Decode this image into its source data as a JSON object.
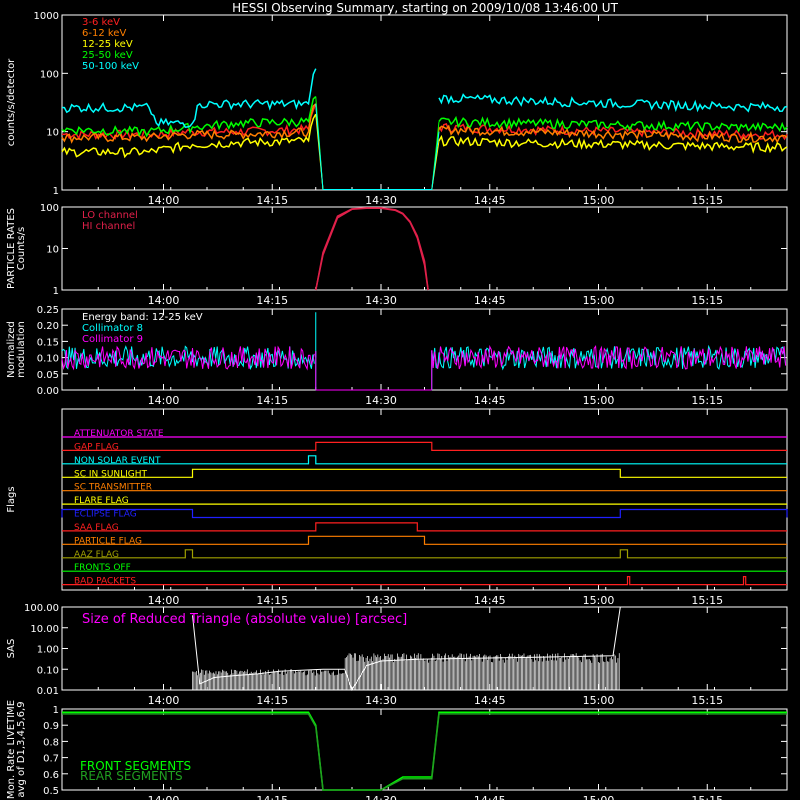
{
  "title": "HESSI Observing Summary, starting on 2009/10/08 13:46:00 UT",
  "time_ticks": [
    "14:00",
    "14:15",
    "14:30",
    "14:45",
    "15:00",
    "15:15"
  ],
  "colors": {
    "background": "#000000",
    "axis": "#ffffff",
    "red": "#ff2020",
    "orange": "#ff7f00",
    "yellow": "#ffff00",
    "green": "#00ff00",
    "cyan": "#00ffff",
    "magenta": "#ff00ff",
    "blue": "#2020ff",
    "crimson": "#e0204a",
    "olive": "#a0a000",
    "white": "#ffffff"
  },
  "chart_data": [
    {
      "id": "count-rates",
      "type": "line",
      "title": "HESSI Observing Summary, starting on 2009/10/08 13:46:00 UT",
      "ylabel": "counts/s/detector",
      "y_scale": "log",
      "ylim": [
        1,
        1000
      ],
      "y_ticks": [
        "1000",
        "100",
        "10",
        "1"
      ],
      "x_range": [
        "13:46",
        "15:26"
      ],
      "legend_position": "top-left",
      "series": [
        {
          "name": "3-6 keV",
          "color": "#ff2020",
          "x": [
            "13:46",
            "13:58",
            "14:04",
            "14:10",
            "14:20",
            "14:21",
            "14:22",
            "14:37",
            "14:38",
            "14:50",
            "15:05",
            "15:20",
            "15:26"
          ],
          "values": [
            9,
            9,
            10,
            10,
            11,
            30,
            null,
            null,
            12,
            11,
            10,
            9,
            9
          ]
        },
        {
          "name": "6-12 keV",
          "color": "#ff7f00",
          "x": [
            "13:46",
            "13:58",
            "14:04",
            "14:10",
            "14:20",
            "14:21",
            "14:22",
            "14:37",
            "14:38",
            "14:50",
            "15:05",
            "15:20",
            "15:26"
          ],
          "values": [
            8,
            8,
            9,
            9,
            10,
            30,
            null,
            null,
            11,
            10,
            9,
            8,
            8
          ]
        },
        {
          "name": "12-25 keV",
          "color": "#ffff00",
          "x": [
            "13:46",
            "13:58",
            "14:04",
            "14:10",
            "14:20",
            "14:21",
            "14:22",
            "14:37",
            "14:38",
            "14:50",
            "15:05",
            "15:20",
            "15:26"
          ],
          "values": [
            4.5,
            4.5,
            6,
            6.5,
            7,
            20,
            null,
            null,
            7,
            6.5,
            6,
            5.5,
            5.5
          ]
        },
        {
          "name": "25-50 keV",
          "color": "#00ff00",
          "x": [
            "13:46",
            "13:58",
            "14:04",
            "14:10",
            "14:20",
            "14:21",
            "14:22",
            "14:37",
            "14:38",
            "14:50",
            "15:05",
            "15:20",
            "15:26"
          ],
          "values": [
            11,
            10,
            12,
            14,
            15,
            40,
            null,
            null,
            15,
            14,
            13,
            12,
            12
          ]
        },
        {
          "name": "50-100 keV",
          "color": "#00ffff",
          "x": [
            "13:46",
            "13:58",
            "13:59",
            "14:04",
            "14:05",
            "14:20",
            "14:21",
            "14:22",
            "14:37",
            "14:38",
            "14:50",
            "15:05",
            "15:20",
            "15:26"
          ],
          "values": [
            26,
            26,
            14,
            14,
            30,
            30,
            120,
            null,
            null,
            38,
            34,
            30,
            27,
            27
          ]
        }
      ]
    },
    {
      "id": "particle-rates",
      "type": "line",
      "ylabel": "PARTICLE RATES Counts/s",
      "y_scale": "log",
      "ylim": [
        1,
        100
      ],
      "y_ticks": [
        "100",
        "10",
        "1"
      ],
      "x_range": [
        "13:46",
        "15:26"
      ],
      "series": [
        {
          "name": "LO channel",
          "color": "#e0204a",
          "x": [
            "14:21",
            "14:22",
            "14:24",
            "14:26",
            "14:28",
            "14:30",
            "14:32",
            "14:33",
            "14:34",
            "14:35",
            "14:36",
            "14:36.5"
          ],
          "values": [
            1,
            8,
            60,
            90,
            95,
            95,
            85,
            70,
            45,
            20,
            5,
            1
          ]
        },
        {
          "name": "HI channel",
          "color": "#e0204a",
          "x": [
            "14:21",
            "14:22",
            "14:24",
            "14:26",
            "14:28",
            "14:30",
            "14:32",
            "14:33",
            "14:34",
            "14:35",
            "14:36",
            "14:36.5"
          ],
          "values": [
            1,
            7,
            55,
            88,
            93,
            93,
            83,
            68,
            43,
            18,
            4,
            1
          ]
        }
      ]
    },
    {
      "id": "modulation",
      "type": "line",
      "ylabel": "Normalized modulation",
      "annotation": "Energy band: 12-25 keV",
      "ylim": [
        0,
        0.25
      ],
      "y_ticks": [
        "0.25",
        "0.20",
        "0.15",
        "0.10",
        "0.05",
        "0.00"
      ],
      "x_range": [
        "13:46",
        "15:26"
      ],
      "series": [
        {
          "name": "Collimator 8",
          "color": "#00ffff",
          "mean": 0.1,
          "active": [
            [
              "13:46",
              "14:21"
            ],
            [
              "14:37",
              "15:26"
            ]
          ],
          "spike": {
            "x": "14:21",
            "value": 0.24
          }
        },
        {
          "name": "Collimator 9",
          "color": "#ff00ff",
          "mean": 0.1,
          "active": [
            [
              "13:46",
              "14:21"
            ],
            [
              "14:37",
              "15:26"
            ]
          ]
        }
      ]
    },
    {
      "id": "flags",
      "type": "line",
      "ylabel": "Flags",
      "x_range": [
        "13:46",
        "15:26"
      ],
      "series": [
        {
          "name": "ATTENUATOR STATE",
          "color": "#ff00ff",
          "high": []
        },
        {
          "name": "GAP FLAG",
          "color": "#ff2020",
          "high": [
            [
              "14:21",
              "14:37"
            ]
          ]
        },
        {
          "name": "NON SOLAR EVENT",
          "color": "#00ffff",
          "high": [
            [
              "14:20",
              "14:21"
            ]
          ]
        },
        {
          "name": "SC IN SUNLIGHT",
          "color": "#ffff00",
          "high": [
            [
              "14:04",
              "15:03"
            ]
          ]
        },
        {
          "name": "SC TRANSMITTER",
          "color": "#ff7f00",
          "high": []
        },
        {
          "name": "FLARE FLAG",
          "color": "#ffff00",
          "high": []
        },
        {
          "name": "ECLIPSE FLAG",
          "color": "#2020ff",
          "high": [
            [
              "13:46",
              "14:04"
            ],
            [
              "15:03",
              "15:26"
            ]
          ]
        },
        {
          "name": "SAA FLAG",
          "color": "#ff2020",
          "high": [
            [
              "14:21",
              "14:35"
            ]
          ]
        },
        {
          "name": "PARTICLE FLAG",
          "color": "#ff7f00",
          "high": [
            [
              "14:20",
              "14:36"
            ]
          ]
        },
        {
          "name": "AAZ FLAG",
          "color": "#a0a000",
          "high": [
            [
              "14:03",
              "14:04"
            ],
            [
              "15:03",
              "15:04"
            ]
          ]
        },
        {
          "name": "FRONTS OFF",
          "color": "#00ff00",
          "high": []
        },
        {
          "name": "BAD PACKETS",
          "color": "#ff2020",
          "high": [
            [
              "15:04",
              "15:04.3"
            ],
            [
              "15:20",
              "15:20.3"
            ]
          ]
        }
      ]
    },
    {
      "id": "sas",
      "type": "line",
      "ylabel": "SAS",
      "annotation": "Size of Reduced Triangle (absolute value) [arcsec]",
      "y_scale": "log",
      "ylim": [
        0.01,
        100
      ],
      "y_ticks": [
        "100.00",
        "10.00",
        "1.00",
        "0.10",
        "0.01"
      ],
      "x_range": [
        "13:46",
        "15:26"
      ],
      "series": [
        {
          "name": "Triangle",
          "color": "#ffffff",
          "x": [
            "14:04",
            "14:05",
            "14:07",
            "14:10",
            "14:13",
            "14:16",
            "14:19",
            "14:22",
            "14:25",
            "14:26",
            "14:28",
            "14:30",
            "14:35",
            "14:45",
            "14:55",
            "15:02",
            "15:03"
          ],
          "values": [
            40,
            0.02,
            0.04,
            0.05,
            0.06,
            0.08,
            0.09,
            0.1,
            0.1,
            0.01,
            0.15,
            0.25,
            0.3,
            0.35,
            0.4,
            0.45,
            100
          ]
        }
      ]
    },
    {
      "id": "livetime",
      "type": "line",
      "ylabel": "Mon. Rate LIVETIME avg of D1,3,4,5,6,9",
      "ylim": [
        0.5,
        1.0
      ],
      "y_ticks": [
        "1",
        "0.9",
        "0.8",
        "0.7",
        "0.6",
        "0.5"
      ],
      "x_range": [
        "13:46",
        "15:26"
      ],
      "series": [
        {
          "name": "FRONT SEGMENTS",
          "color": "#00ff00",
          "x": [
            "13:46",
            "14:20",
            "14:21",
            "14:22",
            "14:30",
            "14:33",
            "14:37",
            "14:38",
            "15:26"
          ],
          "values": [
            0.98,
            0.98,
            0.9,
            0.5,
            0.5,
            0.58,
            0.58,
            0.98,
            0.98
          ]
        },
        {
          "name": "REAR SEGMENTS",
          "color": "#20a020",
          "x": [
            "13:46",
            "14:20",
            "14:21",
            "14:22",
            "14:30",
            "14:33",
            "14:37",
            "14:38",
            "15:26"
          ],
          "values": [
            0.97,
            0.97,
            0.89,
            0.5,
            0.5,
            0.57,
            0.57,
            0.97,
            0.97
          ]
        }
      ]
    }
  ]
}
